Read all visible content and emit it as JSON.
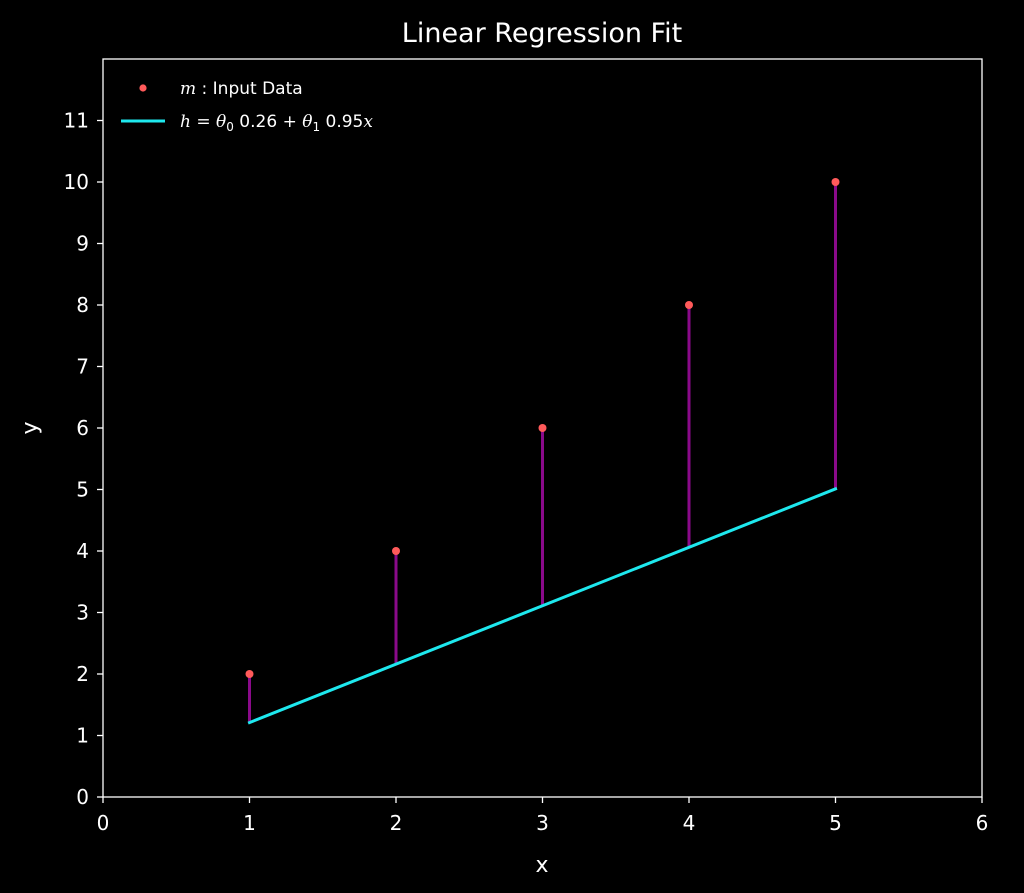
{
  "colors": {
    "background": "#000000",
    "axes": "#ffffff",
    "points": "#ff5a5a",
    "fit_line": "#1ee8ee",
    "residuals": "#8a0a8a"
  },
  "chart_data": {
    "type": "scatter",
    "title": "Linear Regression Fit",
    "xlabel": "x",
    "ylabel": "y",
    "xlim": [
      0,
      6
    ],
    "ylim": [
      0,
      12
    ],
    "xticks": [
      0,
      1,
      2,
      3,
      4,
      5,
      6
    ],
    "yticks": [
      0,
      1,
      2,
      3,
      4,
      5,
      6,
      7,
      8,
      9,
      10,
      11
    ],
    "grid": false,
    "legend_position": "top-left",
    "points": {
      "name": "m : Input Data",
      "x": [
        1,
        2,
        3,
        4,
        5
      ],
      "y": [
        2,
        4,
        6,
        8,
        10
      ]
    },
    "fit": {
      "name": "h = θ0 0.26 + θ1 0.95x",
      "intercept": 0.26,
      "slope": 0.95,
      "x_range": [
        1,
        5
      ]
    },
    "legend": {
      "points_label_var": "m",
      "points_label_rest": " : Input Data",
      "fit_label_lhs": "h",
      "fit_label_theta0": "θ",
      "fit_label_sub0": "0",
      "fit_label_mid": " 0.26 + ",
      "fit_label_theta1": "θ",
      "fit_label_sub1": "1",
      "fit_label_coef": " 0.95",
      "fit_label_x": "x"
    }
  }
}
